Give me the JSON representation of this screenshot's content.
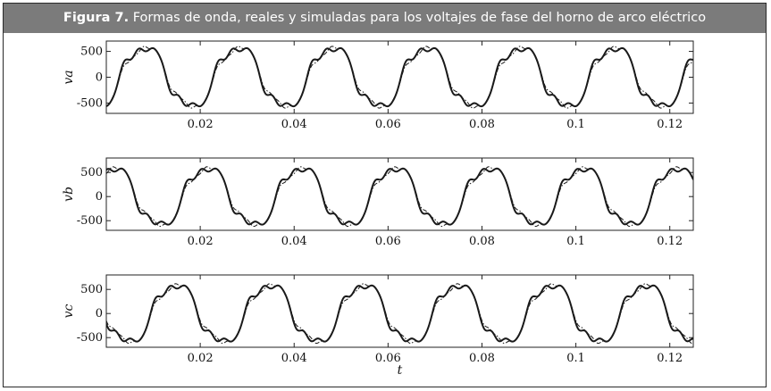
{
  "caption": {
    "figure_number": "Figura 7.",
    "text": "Formas de onda, reales y simuladas para los voltajes de fase del horno de arco eléctrico"
  },
  "chart_data": [
    {
      "type": "line",
      "ylabel": "va",
      "xlabel": "",
      "xlim": [
        0,
        0.125
      ],
      "ylim": [
        -700,
        700
      ],
      "xticks": [
        0.02,
        0.04,
        0.06,
        0.08,
        0.1,
        0.12
      ],
      "xtick_labels": [
        "0.02",
        "0.04",
        "0.06",
        "0.08",
        "0.1",
        "0.12"
      ],
      "yticks": [
        500,
        0,
        -500
      ],
      "ytick_labels": [
        "500",
        "0",
        "-500"
      ],
      "phase_deg": -54,
      "amplitude": 600,
      "frequency_hz": 50,
      "series": [
        {
          "style": "solid"
        },
        {
          "style": "dash-dot"
        }
      ]
    },
    {
      "type": "line",
      "ylabel": "vb",
      "xlabel": "",
      "xlim": [
        0,
        0.125
      ],
      "ylim": [
        -700,
        800
      ],
      "xticks": [
        0.02,
        0.04,
        0.06,
        0.08,
        0.1,
        0.12
      ],
      "xtick_labels": [
        "0.02",
        "0.04",
        "0.06",
        "0.08",
        "0.1",
        "0.12"
      ],
      "yticks": [
        500,
        0,
        -500
      ],
      "ytick_labels": [
        "500",
        "0",
        "-500"
      ],
      "phase_deg": 66,
      "amplitude": 620,
      "frequency_hz": 50,
      "series": [
        {
          "style": "solid"
        },
        {
          "style": "dash-dot"
        }
      ]
    },
    {
      "type": "line",
      "ylabel": "vc",
      "xlabel": "t",
      "xlim": [
        0,
        0.125
      ],
      "ylim": [
        -700,
        800
      ],
      "xticks": [
        0.02,
        0.04,
        0.06,
        0.08,
        0.1,
        0.12
      ],
      "xtick_labels": [
        "0.02",
        "0.04",
        "0.06",
        "0.08",
        "0.1",
        "0.12"
      ],
      "yticks": [
        500,
        0,
        -500
      ],
      "ytick_labels": [
        "500",
        "0",
        "-500"
      ],
      "phase_deg": 186,
      "amplitude": 620,
      "frequency_hz": 50,
      "series": [
        {
          "style": "solid"
        },
        {
          "style": "dash-dot"
        }
      ]
    }
  ]
}
